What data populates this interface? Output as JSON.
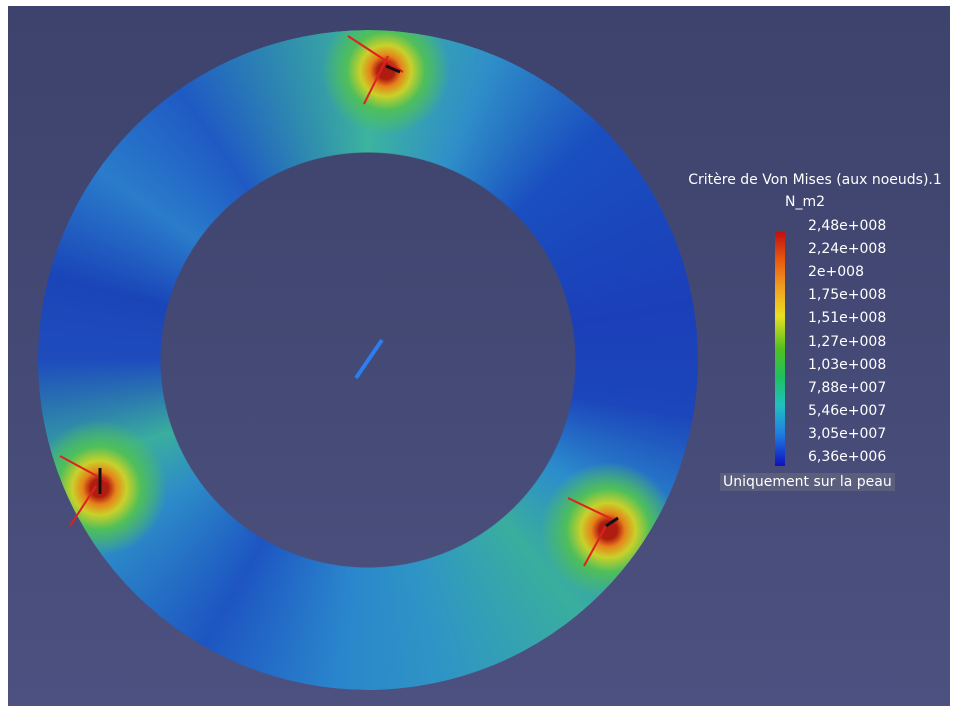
{
  "legend": {
    "title": "Critère de Von Mises (aux noeuds).1",
    "unit": "N_m2",
    "labels": [
      "2,48e+008",
      "2,24e+008",
      "2e+008",
      "1,75e+008",
      "1,51e+008",
      "1,27e+008",
      "1,03e+008",
      "7,88e+007",
      "5,46e+007",
      "3,05e+007",
      "6,36e+006"
    ],
    "note": "Uniquement sur la peau"
  }
}
